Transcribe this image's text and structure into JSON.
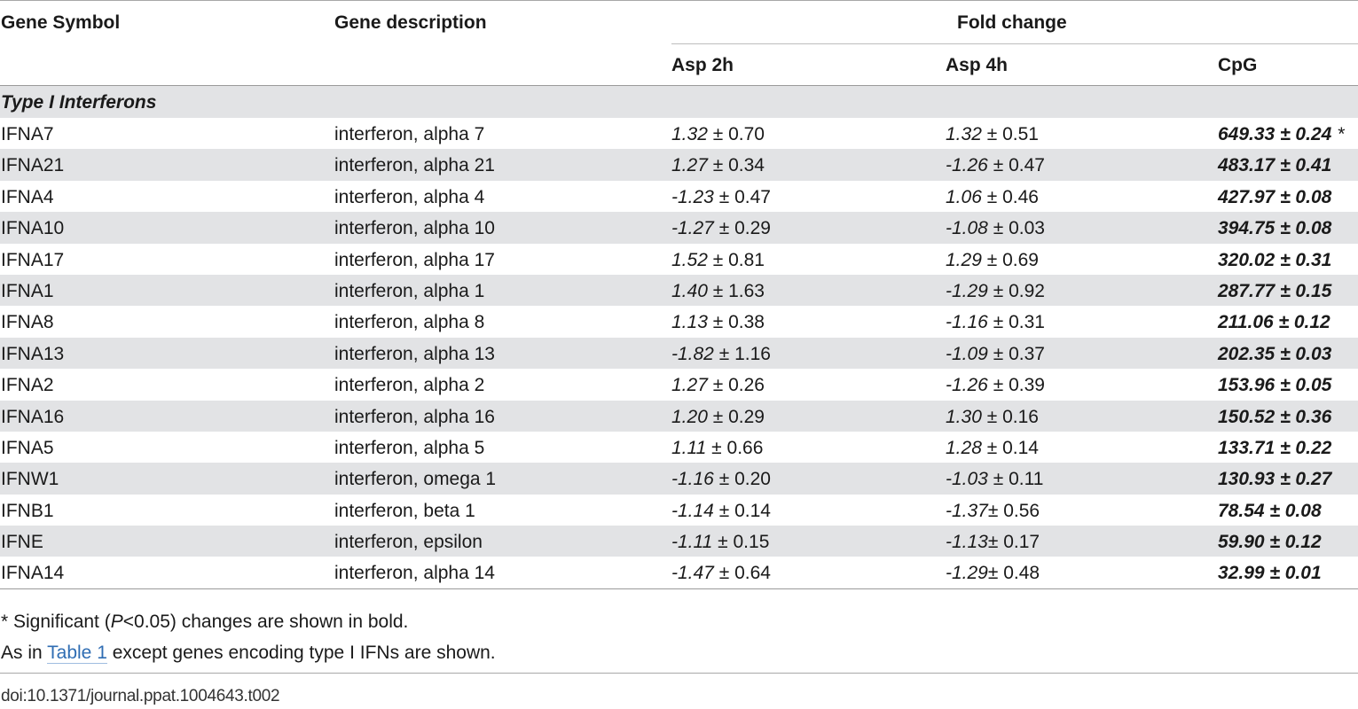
{
  "headers": {
    "gene_symbol": "Gene Symbol",
    "gene_description": "Gene description",
    "fold_change": "Fold change",
    "asp2h": "Asp 2h",
    "asp4h": "Asp 4h",
    "cpg": "CpG"
  },
  "section_title": "Type I Interferons",
  "rows": [
    {
      "symbol": "IFNA7",
      "description": "interferon, alpha 7",
      "asp2h": {
        "mean": "1.32",
        "sd": " ± 0.70"
      },
      "asp4h": {
        "mean": "1.32",
        "sd": " ± 0.51"
      },
      "cpg": "649.33 ± 0.24",
      "cpg_mark": "*"
    },
    {
      "symbol": "IFNA21",
      "description": "interferon, alpha 21",
      "asp2h": {
        "mean": "1.27",
        "sd": " ± 0.34"
      },
      "asp4h": {
        "mean": "-1.26",
        "sd": " ± 0.47"
      },
      "cpg": "483.17 ± 0.41"
    },
    {
      "symbol": "IFNA4",
      "description": "interferon, alpha 4",
      "asp2h": {
        "mean": "-1.23",
        "sd": " ± 0.47"
      },
      "asp4h": {
        "mean": "1.06",
        "sd": " ± 0.46"
      },
      "cpg": "427.97 ± 0.08"
    },
    {
      "symbol": "IFNA10",
      "description": "interferon, alpha 10",
      "asp2h": {
        "mean": "-1.27",
        "sd": " ± 0.29"
      },
      "asp4h": {
        "mean": "-1.08",
        "sd": " ± 0.03"
      },
      "cpg": "394.75 ± 0.08"
    },
    {
      "symbol": "IFNA17",
      "description": "interferon, alpha 17",
      "asp2h": {
        "mean": "1.52",
        "sd": " ± 0.81"
      },
      "asp4h": {
        "mean": "1.29",
        "sd": " ± 0.69"
      },
      "cpg": "320.02 ± 0.31"
    },
    {
      "symbol": "IFNA1",
      "description": "interferon, alpha 1",
      "asp2h": {
        "mean": "1.40",
        "sd": " ± 1.63"
      },
      "asp4h": {
        "mean": "-1.29",
        "sd": " ± 0.92"
      },
      "cpg": "287.77 ± 0.15"
    },
    {
      "symbol": "IFNA8",
      "description": "interferon, alpha 8",
      "asp2h": {
        "mean": "1.13",
        "sd": " ± 0.38"
      },
      "asp4h": {
        "mean": "-1.16",
        "sd": " ± 0.31"
      },
      "cpg": "211.06 ± 0.12"
    },
    {
      "symbol": "IFNA13",
      "description": "interferon, alpha 13",
      "asp2h": {
        "mean": "-1.82",
        "sd": " ± 1.16"
      },
      "asp4h": {
        "mean": "-1.09",
        "sd": " ± 0.37"
      },
      "cpg": "202.35 ± 0.03"
    },
    {
      "symbol": "IFNA2",
      "description": "interferon, alpha 2",
      "asp2h": {
        "mean": "1.27",
        "sd": " ± 0.26"
      },
      "asp4h": {
        "mean": "-1.26",
        "sd": " ± 0.39"
      },
      "cpg": "153.96 ± 0.05"
    },
    {
      "symbol": "IFNA16",
      "description": "interferon, alpha 16",
      "asp2h": {
        "mean": "1.20",
        "sd": " ± 0.29"
      },
      "asp4h": {
        "mean": "1.30",
        "sd": " ± 0.16"
      },
      "cpg": "150.52 ± 0.36"
    },
    {
      "symbol": "IFNA5",
      "description": "interferon, alpha 5",
      "asp2h": {
        "mean": "1.11",
        "sd": " ± 0.66"
      },
      "asp4h": {
        "mean": "1.28",
        "sd": " ± 0.14"
      },
      "cpg": "133.71 ± 0.22"
    },
    {
      "symbol": "IFNW1",
      "description": "interferon, omega 1",
      "asp2h": {
        "mean": "-1.16",
        "sd": " ± 0.20"
      },
      "asp4h": {
        "mean": "-1.03",
        "sd": " ± 0.11"
      },
      "cpg": "130.93 ± 0.27"
    },
    {
      "symbol": "IFNB1",
      "description": "interferon, beta 1",
      "asp2h": {
        "mean": "-1.14",
        "sd": " ± 0.14"
      },
      "asp4h": {
        "mean": "-1.37",
        "sd": "± 0.56"
      },
      "cpg": "78.54 ± 0.08"
    },
    {
      "symbol": "IFNE",
      "description": "interferon, epsilon",
      "asp2h": {
        "mean": "-1.11",
        "sd": " ± 0.15"
      },
      "asp4h": {
        "mean": "-1.13",
        "sd": "± 0.17"
      },
      "cpg": "59.90 ± 0.12"
    },
    {
      "symbol": "IFNA14",
      "description": "interferon, alpha 14",
      "asp2h": {
        "mean": "-1.47",
        "sd": " ± 0.64"
      },
      "asp4h": {
        "mean": "-1.29",
        "sd": "± 0.48"
      },
      "cpg": "32.99 ± 0.01"
    }
  ],
  "notes": {
    "significance_prefix": "* Significant (",
    "significance_p": "P",
    "significance_suffix": "<0.05) changes are shown in bold.",
    "ref_prefix": "As in ",
    "ref_link": "Table 1",
    "ref_suffix": " except genes encoding type I IFNs are shown."
  },
  "doi": "doi:10.1371/journal.ppat.1004643.t002",
  "colors": {
    "link": "#2f6db3",
    "band": "#e2e3e5"
  }
}
